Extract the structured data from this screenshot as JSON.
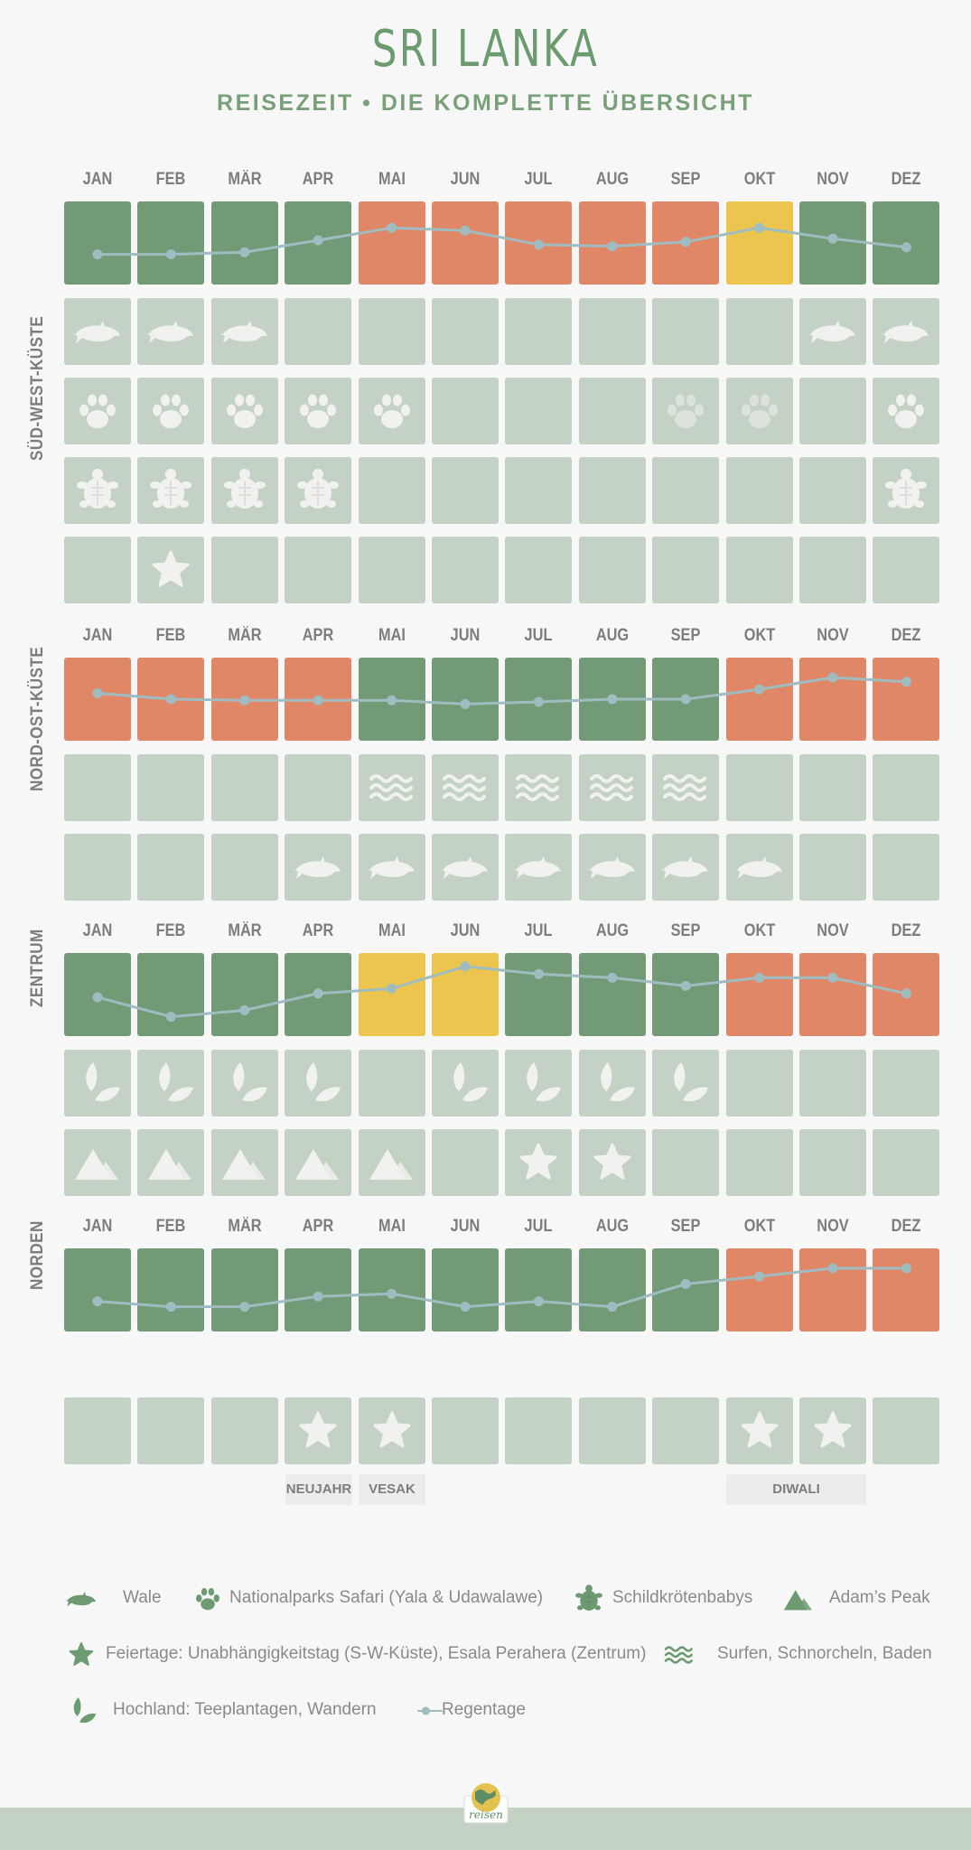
{
  "title": "SRI LANKA",
  "subtitle": "REISEZEIT • DIE KOMPLETTE ÜBERSICHT",
  "months": [
    "JAN",
    "FEB",
    "MÄR",
    "APR",
    "MAI",
    "JUN",
    "JUL",
    "AUG",
    "SEP",
    "OKT",
    "NOV",
    "DEZ"
  ],
  "colors": {
    "good": "#739a77",
    "bad": "#e08768",
    "medium": "#ecc54f",
    "empty": "#c3d2c5",
    "icon": "#f1f1ef",
    "rain_line": "#9fbdc0",
    "legend_icon": "#6e9a72"
  },
  "sections": [
    {
      "region": "SÜD-WEST-KÜSTE",
      "weather": [
        "g",
        "g",
        "g",
        "g",
        "o",
        "o",
        "o",
        "o",
        "o",
        "y",
        "g",
        "g"
      ],
      "rain": [
        0.21,
        0.21,
        0.17,
        -0.05,
        -0.28,
        -0.23,
        0.03,
        0.06,
        -0.02,
        -0.28,
        -0.08,
        0.08
      ],
      "rows": [
        {
          "icon": "whale-icon",
          "months": [
            1,
            1,
            1,
            0,
            0,
            0,
            0,
            0,
            0,
            0,
            1,
            1
          ]
        },
        {
          "icon": "paw-icon",
          "months": [
            1,
            1,
            1,
            1,
            1,
            0,
            0,
            0,
            2,
            2,
            0,
            1
          ]
        },
        {
          "icon": "turtle-icon",
          "months": [
            1,
            1,
            1,
            1,
            0,
            0,
            0,
            0,
            0,
            0,
            0,
            1
          ]
        },
        {
          "icon": "star-icon",
          "months": [
            0,
            1,
            0,
            0,
            0,
            0,
            0,
            0,
            0,
            0,
            0,
            0
          ]
        }
      ]
    },
    {
      "region": "NORD-OST-KÜSTE",
      "weather": [
        "o",
        "o",
        "o",
        "o",
        "g",
        "g",
        "g",
        "g",
        "g",
        "o",
        "o",
        "o"
      ],
      "rain": [
        -0.11,
        0.0,
        0.02,
        0.02,
        0.02,
        0.09,
        0.05,
        -0.0,
        0.0,
        -0.18,
        -0.4,
        -0.32
      ],
      "rows": [
        {
          "icon": "waves-icon",
          "months": [
            0,
            0,
            0,
            0,
            1,
            1,
            1,
            1,
            1,
            0,
            0,
            0
          ]
        },
        {
          "icon": "whale-icon",
          "months": [
            0,
            0,
            0,
            1,
            1,
            1,
            1,
            1,
            1,
            1,
            0,
            0
          ]
        }
      ]
    },
    {
      "region": "ZENTRUM",
      "weather": [
        "g",
        "g",
        "g",
        "g",
        "y",
        "y",
        "g",
        "g",
        "g",
        "o",
        "o",
        "o"
      ],
      "rain": [
        0.05,
        0.41,
        0.29,
        -0.02,
        -0.11,
        -0.52,
        -0.38,
        -0.31,
        -0.16,
        -0.31,
        -0.31,
        -0.02
      ],
      "rows": [
        {
          "icon": "leaf-icon",
          "months": [
            1,
            1,
            1,
            1,
            0,
            1,
            1,
            1,
            1,
            0,
            0,
            0
          ]
        },
        {
          "icon": "mountain-icon",
          "months": [
            1,
            1,
            1,
            1,
            1,
            0,
            3,
            3,
            0,
            0,
            0,
            0
          ]
        }
      ]
    },
    {
      "region": "NORDEN",
      "weather": [
        "g",
        "g",
        "g",
        "g",
        "g",
        "g",
        "g",
        "g",
        "g",
        "o",
        "o",
        "o"
      ],
      "rain": [
        0.21,
        0.31,
        0.31,
        0.12,
        0.07,
        0.31,
        0.21,
        0.31,
        -0.11,
        -0.25,
        -0.4,
        -0.4
      ],
      "rows": [
        {
          "icon": "star-icon",
          "months": [
            0,
            0,
            0,
            1,
            1,
            0,
            0,
            0,
            0,
            1,
            1,
            0
          ]
        }
      ]
    }
  ],
  "holidays": [
    {
      "label": "NEUJAHR"
    },
    {
      "label": "VESAK"
    },
    {
      "label": "DIWALI"
    }
  ],
  "legend": [
    {
      "icon": "whale-icon",
      "text": "Wale"
    },
    {
      "icon": "paw-icon",
      "text": "Nationalparks Safari (Yala & Udawalawe)"
    },
    {
      "icon": "turtle-icon",
      "text": "Schildkrötenbabys"
    },
    {
      "icon": "mountain-icon",
      "text": "Adam’s Peak"
    },
    {
      "icon": "star-icon",
      "text": "Feiertage: Unabhängigkeitstag (S-W-Küste), Esala Perahera (Zentrum)"
    },
    {
      "icon": "waves-icon",
      "text": "Surfen, Schnorcheln, Baden"
    },
    {
      "icon": "leaf-icon",
      "text": "Hochland: Teeplantagen, Wandern"
    },
    {
      "icon": "rain-icon",
      "text": "Regentage"
    }
  ],
  "logo": {
    "text": "reisen"
  }
}
